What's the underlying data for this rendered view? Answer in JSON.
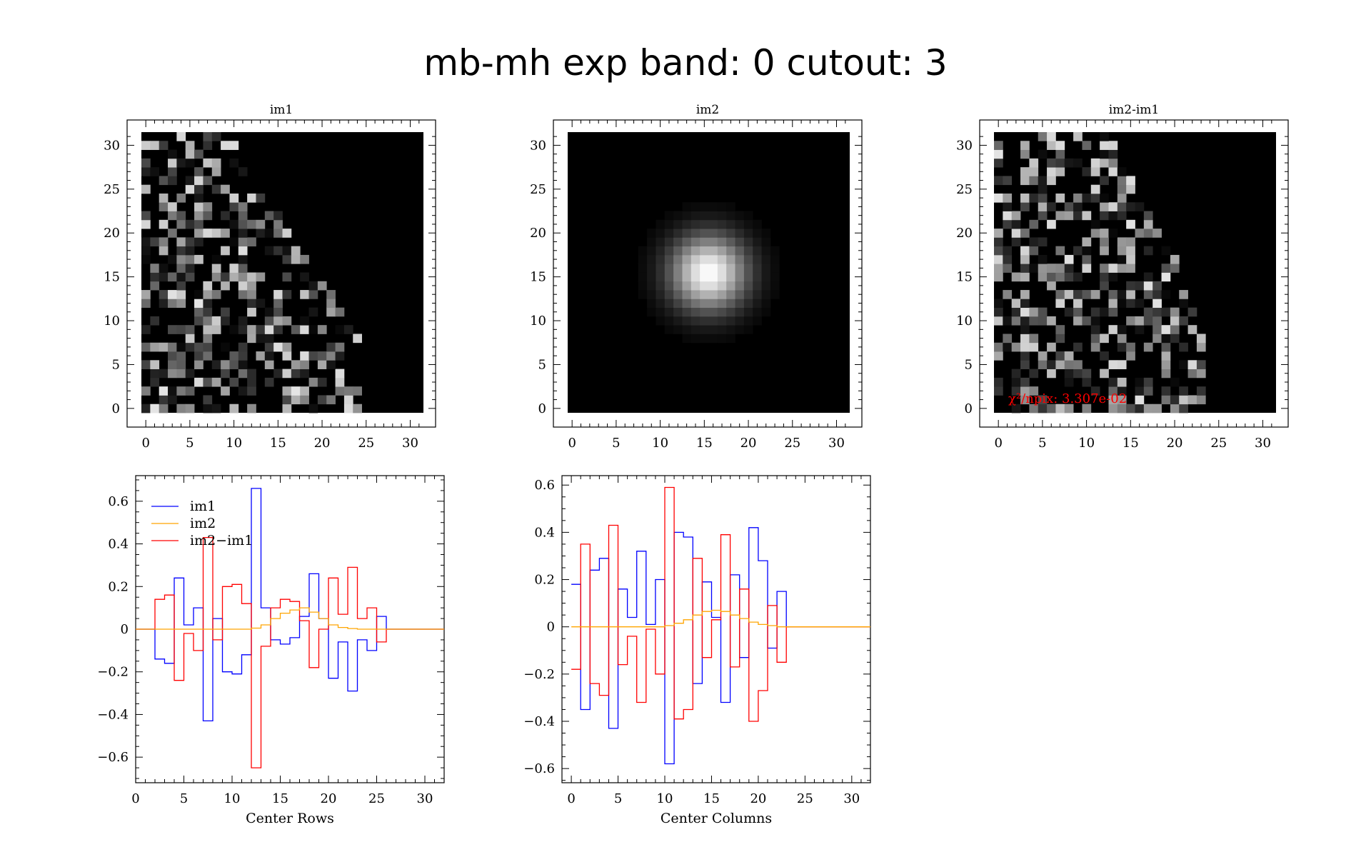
{
  "title": "mb-mh exp band: 0 cutout: 3",
  "images": [
    {
      "title": "im1",
      "xticks": [
        0,
        5,
        10,
        15,
        20,
        25,
        30
      ],
      "yticks": [
        0,
        5,
        10,
        15,
        20,
        25,
        30
      ]
    },
    {
      "title": "im2",
      "xticks": [
        0,
        5,
        10,
        15,
        20,
        25,
        30
      ],
      "yticks": [
        0,
        5,
        10,
        15,
        20,
        25,
        30
      ]
    },
    {
      "title": "im2-im1",
      "xticks": [
        0,
        5,
        10,
        15,
        20,
        25,
        30
      ],
      "yticks": [
        0,
        5,
        10,
        15,
        20,
        25,
        30
      ],
      "annotation": "χ²/npix: 3.307e-02"
    }
  ],
  "colors": {
    "im1": "#0000ff",
    "im2": "#ffa500",
    "diff": "#ff0000",
    "annotation": "#ff0000"
  },
  "chart_data": [
    {
      "type": "heatmap",
      "title": "im1",
      "grid": [
        32,
        32
      ],
      "xlim": [
        0,
        31
      ],
      "ylim": [
        0,
        31
      ],
      "description_pixels": "noisy speckle pattern confined to a quarter-disk region on the left side"
    },
    {
      "type": "heatmap",
      "title": "im2",
      "grid": [
        32,
        32
      ],
      "xlim": [
        0,
        31
      ],
      "ylim": [
        0,
        31
      ],
      "model": "gaussian",
      "center": [
        15.5,
        15.5
      ],
      "sigma": 3
    },
    {
      "type": "heatmap",
      "title": "im2-im1",
      "grid": [
        32,
        32
      ],
      "xlim": [
        0,
        31
      ],
      "ylim": [
        0,
        31
      ],
      "annotation": "χ²/npix: 3.307e-02"
    },
    {
      "type": "line",
      "step": true,
      "xlabel": "Center Rows",
      "ylabel": "",
      "xlim": [
        0,
        32
      ],
      "ylim": [
        -0.72,
        0.72
      ],
      "xticks": [
        0,
        5,
        10,
        15,
        20,
        25,
        30
      ],
      "yticks": [
        -0.6,
        -0.4,
        -0.2,
        0,
        0.2,
        0.4,
        0.6
      ],
      "ytick_labels": [
        "−0.6",
        "−0.4",
        "−0.2",
        "0",
        "0.2",
        "0.4",
        "0.6"
      ],
      "legend": [
        "im1",
        "im2",
        "im2−im1"
      ],
      "series": [
        {
          "name": "im1",
          "x": [
            0,
            1,
            2,
            3,
            4,
            5,
            6,
            7,
            8,
            9,
            10,
            11,
            12,
            13,
            14,
            15,
            16,
            17,
            18,
            19,
            20,
            21,
            22,
            23,
            24,
            25,
            26,
            27,
            28,
            29,
            30,
            31
          ],
          "values": [
            0,
            0,
            -0.14,
            -0.16,
            0.24,
            0.02,
            0.1,
            -0.43,
            0.05,
            -0.2,
            -0.21,
            -0.12,
            0.66,
            0.1,
            -0.05,
            -0.07,
            -0.04,
            0.06,
            0.26,
            0.05,
            -0.23,
            -0.06,
            -0.29,
            -0.05,
            -0.1,
            0.06,
            0,
            0,
            0,
            0,
            0,
            0
          ]
        },
        {
          "name": "im2",
          "x": [
            0,
            1,
            2,
            3,
            4,
            5,
            6,
            7,
            8,
            9,
            10,
            11,
            12,
            13,
            14,
            15,
            16,
            17,
            18,
            19,
            20,
            21,
            22,
            23,
            24,
            25,
            26,
            27,
            28,
            29,
            30,
            31
          ],
          "values": [
            0,
            0,
            0,
            0,
            0,
            0,
            0,
            0,
            0,
            0,
            0,
            0,
            0.005,
            0.02,
            0.05,
            0.075,
            0.09,
            0.1,
            0.08,
            0.05,
            0.02,
            0.008,
            0.003,
            0,
            0,
            0,
            0,
            0,
            0,
            0,
            0,
            0
          ]
        },
        {
          "name": "im2−im1",
          "x": [
            0,
            1,
            2,
            3,
            4,
            5,
            6,
            7,
            8,
            9,
            10,
            11,
            12,
            13,
            14,
            15,
            16,
            17,
            18,
            19,
            20,
            21,
            22,
            23,
            24,
            25,
            26,
            27,
            28,
            29,
            30,
            31
          ],
          "values": [
            0,
            0,
            0.14,
            0.16,
            -0.24,
            -0.02,
            -0.1,
            0.43,
            -0.05,
            0.2,
            0.21,
            0.12,
            -0.65,
            -0.08,
            0.1,
            0.14,
            0.13,
            0.04,
            -0.18,
            0,
            0.24,
            0.07,
            0.29,
            0.05,
            0.1,
            -0.06,
            0,
            0,
            0,
            0,
            0,
            0
          ]
        }
      ]
    },
    {
      "type": "line",
      "step": true,
      "xlabel": "Center Columns",
      "ylabel": "",
      "xlim": [
        -1,
        32
      ],
      "ylim": [
        -0.66,
        0.64
      ],
      "xticks": [
        0,
        5,
        10,
        15,
        20,
        25,
        30
      ],
      "yticks": [
        -0.6,
        -0.4,
        -0.2,
        0,
        0.2,
        0.4,
        0.6
      ],
      "ytick_labels": [
        "−0.6",
        "−0.4",
        "−0.2",
        "0",
        "0.2",
        "0.4",
        "0.6"
      ],
      "series": [
        {
          "name": "im1",
          "x": [
            0,
            1,
            2,
            3,
            4,
            5,
            6,
            7,
            8,
            9,
            10,
            11,
            12,
            13,
            14,
            15,
            16,
            17,
            18,
            19,
            20,
            21,
            22,
            23,
            24,
            25,
            26,
            27,
            28,
            29,
            30,
            31
          ],
          "values": [
            0.18,
            -0.35,
            0.24,
            0.29,
            -0.43,
            0.16,
            0.04,
            0.32,
            0.01,
            0.2,
            -0.58,
            0.4,
            0.38,
            -0.24,
            0.19,
            0.04,
            -0.32,
            0.22,
            -0.13,
            0.42,
            0.28,
            -0.09,
            0.15,
            0,
            0,
            0,
            0,
            0,
            0,
            0,
            0,
            0
          ]
        },
        {
          "name": "im2",
          "x": [
            0,
            1,
            2,
            3,
            4,
            5,
            6,
            7,
            8,
            9,
            10,
            11,
            12,
            13,
            14,
            15,
            16,
            17,
            18,
            19,
            20,
            21,
            22,
            23,
            24,
            25,
            26,
            27,
            28,
            29,
            30,
            31
          ],
          "values": [
            0,
            0,
            0,
            0,
            0,
            0,
            0,
            0,
            0,
            0,
            0.005,
            0.015,
            0.03,
            0.05,
            0.065,
            0.07,
            0.065,
            0.05,
            0.035,
            0.02,
            0.01,
            0.005,
            0,
            0,
            0,
            0,
            0,
            0,
            0,
            0,
            0,
            0
          ]
        },
        {
          "name": "im2−im1",
          "x": [
            0,
            1,
            2,
            3,
            4,
            5,
            6,
            7,
            8,
            9,
            10,
            11,
            12,
            13,
            14,
            15,
            16,
            17,
            18,
            19,
            20,
            21,
            22,
            23,
            24,
            25,
            26,
            27,
            28,
            29,
            30,
            31
          ],
          "values": [
            -0.18,
            0.35,
            -0.24,
            -0.29,
            0.43,
            -0.16,
            -0.04,
            -0.32,
            -0.01,
            -0.2,
            0.59,
            -0.39,
            -0.35,
            0.29,
            -0.13,
            0.03,
            0.39,
            -0.17,
            0.16,
            -0.4,
            -0.27,
            0.09,
            -0.15,
            0,
            0,
            0,
            0,
            0,
            0,
            0,
            0,
            0
          ]
        }
      ]
    }
  ]
}
